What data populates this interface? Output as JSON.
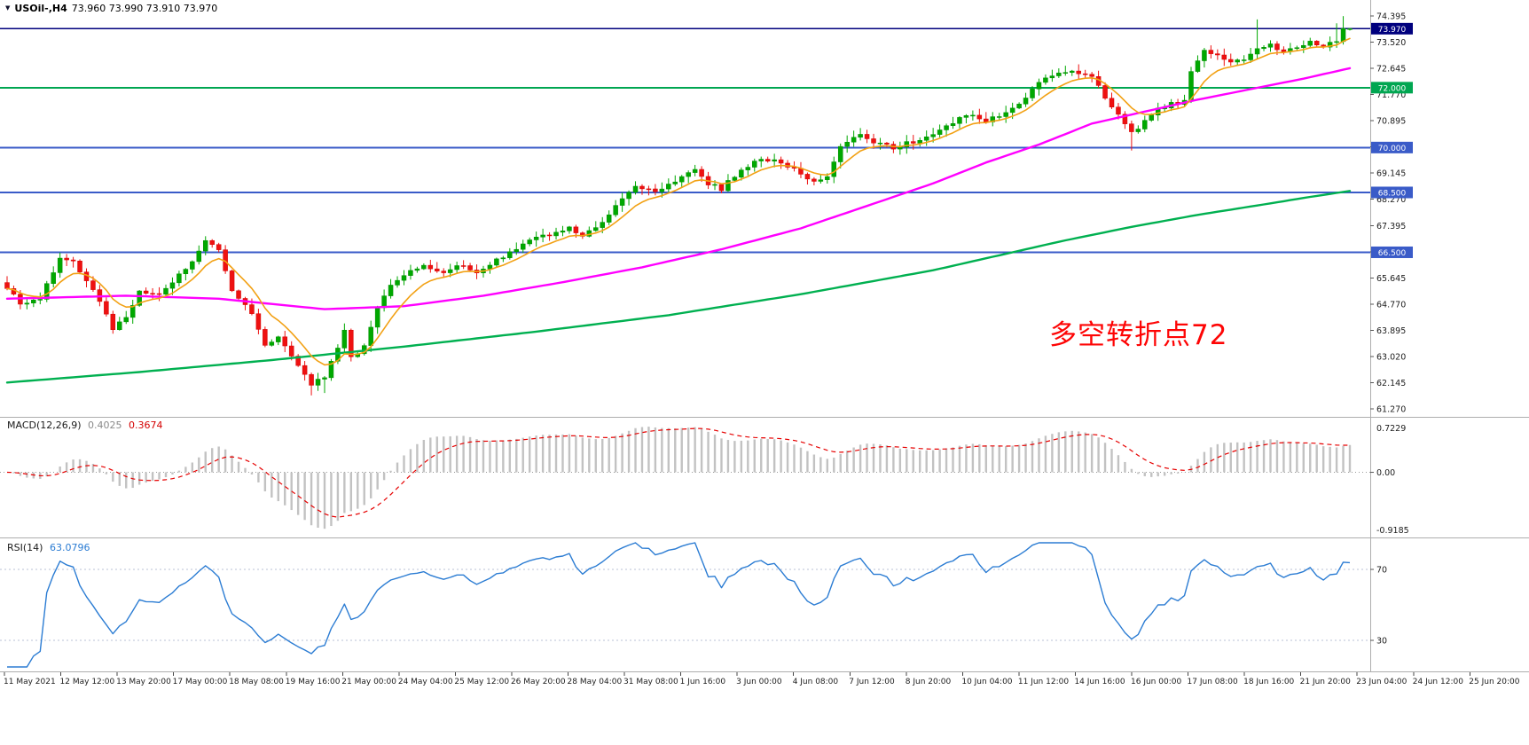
{
  "header": {
    "collapse_icon": "▼",
    "symbol": "USOil-,H4",
    "ohlc": "73.960 73.990 73.910 73.970"
  },
  "main_chart": {
    "annotation": {
      "text": "多空转折点72",
      "color": "#fe0505"
    },
    "current_price_label": "73.970",
    "level_labels": [
      "72.000",
      "70.000",
      "68.500",
      "66.500"
    ]
  },
  "macd_panel": {
    "label": "MACD(12,26,9)",
    "value_main": "0.4025",
    "value_signal": "0.3674",
    "axis_max": "0.7229",
    "axis_zero": "0.00",
    "axis_min": "-0.9185"
  },
  "rsi_panel": {
    "label": "RSI(14)",
    "value": "63.0796",
    "axis_upper": "70",
    "axis_lower": "30"
  },
  "chart_data": {
    "type": "candlestick",
    "title": "USOil-,H4",
    "bars": 204,
    "price_axis": {
      "min": 61.27,
      "max": 74.395,
      "ticks": [
        74.395,
        73.52,
        72.645,
        71.77,
        70.895,
        70.02,
        69.145,
        68.27,
        67.395,
        66.52,
        65.645,
        64.77,
        63.895,
        63.02,
        62.145,
        61.27
      ]
    },
    "current_price": {
      "price": 73.97,
      "label": "73.970",
      "color": "#00007e"
    },
    "levels": [
      {
        "price": 72.0,
        "label": "72.000",
        "color": "#00a651"
      },
      {
        "price": 70.0,
        "label": "70.000",
        "color": "#3a5bc8"
      },
      {
        "price": 68.5,
        "label": "68.500",
        "color": "#3a5bc8"
      },
      {
        "price": 66.5,
        "label": "66.500",
        "color": "#3a5bc8"
      }
    ],
    "last_bar": {
      "open": 73.96,
      "high": 73.99,
      "low": 73.91,
      "close": 73.97
    },
    "price_anchors": [
      [
        0,
        65.35
      ],
      [
        2,
        64.75
      ],
      [
        5,
        64.95
      ],
      [
        8,
        66.35
      ],
      [
        10,
        66.15
      ],
      [
        12,
        65.6
      ],
      [
        14,
        64.85
      ],
      [
        16,
        63.95
      ],
      [
        18,
        64.35
      ],
      [
        20,
        65.15
      ],
      [
        23,
        65.05
      ],
      [
        26,
        65.75
      ],
      [
        28,
        66.2
      ],
      [
        30,
        66.85
      ],
      [
        32,
        66.55
      ],
      [
        34,
        65.2
      ],
      [
        37,
        64.45
      ],
      [
        39,
        63.45
      ],
      [
        41,
        63.65
      ],
      [
        44,
        62.65
      ],
      [
        46,
        62.1
      ],
      [
        48,
        62.35
      ],
      [
        50,
        63.3
      ],
      [
        51,
        63.85
      ],
      [
        52,
        62.95
      ],
      [
        54,
        63.4
      ],
      [
        56,
        64.65
      ],
      [
        58,
        65.35
      ],
      [
        61,
        65.9
      ],
      [
        63,
        66.0
      ],
      [
        66,
        65.85
      ],
      [
        69,
        66.1
      ],
      [
        71,
        65.8
      ],
      [
        74,
        66.25
      ],
      [
        76,
        66.5
      ],
      [
        79,
        66.9
      ],
      [
        82,
        67.1
      ],
      [
        85,
        67.3
      ],
      [
        87,
        67.1
      ],
      [
        90,
        67.45
      ],
      [
        93,
        68.3
      ],
      [
        95,
        68.7
      ],
      [
        98,
        68.55
      ],
      [
        101,
        68.9
      ],
      [
        104,
        69.3
      ],
      [
        106,
        68.8
      ],
      [
        108,
        68.6
      ],
      [
        111,
        69.3
      ],
      [
        114,
        69.6
      ],
      [
        117,
        69.5
      ],
      [
        119,
        69.25
      ],
      [
        122,
        68.9
      ],
      [
        124,
        69.05
      ],
      [
        126,
        70.0
      ],
      [
        129,
        70.45
      ],
      [
        132,
        70.1
      ],
      [
        134,
        70.0
      ],
      [
        137,
        70.2
      ],
      [
        140,
        70.5
      ],
      [
        143,
        70.85
      ],
      [
        145,
        71.1
      ],
      [
        148,
        70.9
      ],
      [
        151,
        71.2
      ],
      [
        154,
        71.6
      ],
      [
        156,
        72.2
      ],
      [
        159,
        72.5
      ],
      [
        161,
        72.6
      ],
      [
        164,
        72.35
      ],
      [
        166,
        71.7
      ],
      [
        168,
        71.05
      ],
      [
        170,
        70.5
      ],
      [
        172,
        70.85
      ],
      [
        174,
        71.25
      ],
      [
        176,
        71.45
      ],
      [
        178,
        71.55
      ],
      [
        179,
        72.6
      ],
      [
        181,
        73.2
      ],
      [
        183,
        73.05
      ],
      [
        185,
        72.85
      ],
      [
        187,
        72.95
      ],
      [
        189,
        73.3
      ],
      [
        191,
        73.45
      ],
      [
        193,
        73.15
      ],
      [
        195,
        73.35
      ],
      [
        197,
        73.5
      ],
      [
        199,
        73.4
      ],
      [
        201,
        73.6
      ],
      [
        202,
        74.0
      ],
      [
        203,
        73.97
      ]
    ],
    "wick_high_overrides": [
      [
        189,
        74.28
      ],
      [
        201,
        74.15
      ],
      [
        202,
        74.39
      ]
    ],
    "wick_low_overrides": [
      [
        46,
        61.72
      ],
      [
        48,
        61.8
      ],
      [
        170,
        69.9
      ]
    ],
    "ma_fast_period": 8,
    "ma_mid_anchors": [
      [
        0,
        64.95
      ],
      [
        18,
        65.05
      ],
      [
        32,
        64.95
      ],
      [
        48,
        64.6
      ],
      [
        60,
        64.7
      ],
      [
        72,
        65.05
      ],
      [
        84,
        65.5
      ],
      [
        96,
        66.0
      ],
      [
        108,
        66.6
      ],
      [
        120,
        67.3
      ],
      [
        132,
        68.2
      ],
      [
        140,
        68.8
      ],
      [
        148,
        69.5
      ],
      [
        156,
        70.1
      ],
      [
        164,
        70.8
      ],
      [
        172,
        71.2
      ],
      [
        180,
        71.6
      ],
      [
        188,
        71.95
      ],
      [
        196,
        72.3
      ],
      [
        203,
        72.65
      ]
    ],
    "ma_slow_anchors": [
      [
        0,
        62.15
      ],
      [
        20,
        62.5
      ],
      [
        40,
        62.9
      ],
      [
        60,
        63.35
      ],
      [
        80,
        63.85
      ],
      [
        100,
        64.4
      ],
      [
        120,
        65.1
      ],
      [
        140,
        65.9
      ],
      [
        150,
        66.4
      ],
      [
        160,
        66.9
      ],
      [
        170,
        67.35
      ],
      [
        180,
        67.75
      ],
      [
        190,
        68.1
      ],
      [
        197,
        68.35
      ],
      [
        203,
        68.55
      ]
    ],
    "macd": {
      "fast": 12,
      "slow": 26,
      "signal": 9,
      "current_main": 0.4025,
      "current_signal": 0.3674,
      "display_max": 0.7229,
      "display_min": -0.9185
    },
    "rsi": {
      "period": 14,
      "current": 63.0796,
      "levels": [
        70,
        30
      ],
      "draw_range": [
        15,
        85
      ]
    },
    "colors": {
      "bull": "#00a800",
      "bull_stroke": "#008f00",
      "bear": "#ee1111",
      "bear_stroke": "#d40000",
      "ma_fast": "#f2a114",
      "ma_mid": "#ff00ff",
      "ma_slow": "#00b050",
      "macd_hist": "#c2c2c2",
      "macd_signal": "#e60000",
      "rsi_line": "#2b7cd3",
      "axis_text": "#1c1c1c",
      "separator": "#adadad"
    },
    "time_labels": [
      "11 May 2021",
      "12 May 12:00",
      "13 May 20:00",
      "17 May 00:00",
      "18 May 08:00",
      "19 May 16:00",
      "21 May 00:00",
      "24 May 04:00",
      "25 May 12:00",
      "26 May 20:00",
      "28 May 04:00",
      "31 May 08:00",
      "1 Jun 16:00",
      "3 Jun 00:00",
      "4 Jun 08:00",
      "7 Jun 12:00",
      "8 Jun 20:00",
      "10 Jun 04:00",
      "11 Jun 12:00",
      "14 Jun 16:00",
      "16 Jun 00:00",
      "17 Jun 08:00",
      "18 Jun 16:00",
      "21 Jun 20:00",
      "23 Jun 04:00",
      "24 Jun 12:00",
      "25 Jun 20:00"
    ]
  }
}
